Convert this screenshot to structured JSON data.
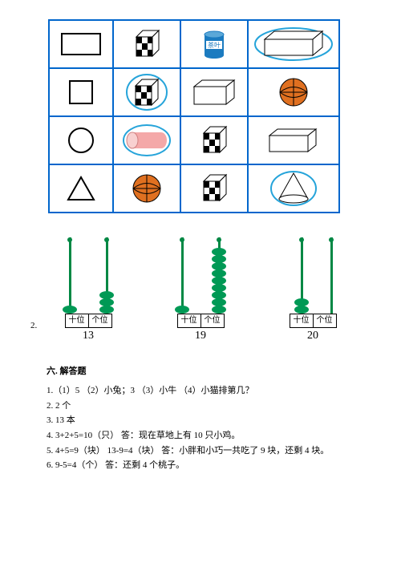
{
  "abacus": {
    "label_tens": "十位",
    "label_ones": "个位",
    "items": [
      {
        "tens_beads": 1,
        "ones_beads": 3,
        "number": "13",
        "bead_color": "#009955"
      },
      {
        "tens_beads": 1,
        "ones_beads": 9,
        "number": "19",
        "bead_color": "#009955"
      },
      {
        "tens_beads": 2,
        "ones_beads": 0,
        "number": "20",
        "bead_color": "#009955"
      }
    ],
    "rod_color": "#008844",
    "question_number": "2."
  },
  "section6_title": "六. 解答题",
  "answers": {
    "a1": "1.（1）5 （2）小兔；3 （3）小牛 （4）小猫排第几？",
    "a2": "2. 2 个",
    "a3": "3. 13 本",
    "a4": "4. 3+2+5=10（只）   答：现在草地上有 10 只小鸡。",
    "a5": "5. 4+5=9（块）    13-9=4（块）    答：小胖和小巧一共吃了 9 块，还剩 4 块。",
    "a6": "6. 9-5=4（个）  答：还剩 4 个桃子。"
  },
  "table_colors": {
    "border": "#0066cc",
    "circle_stroke": "#26a4da",
    "checker_dark": "#000000",
    "basketball": "#e07020",
    "cylinder_pink": "#f4a8a8",
    "tea_can": "#1b7bc0",
    "tea_label": "茶叶"
  }
}
